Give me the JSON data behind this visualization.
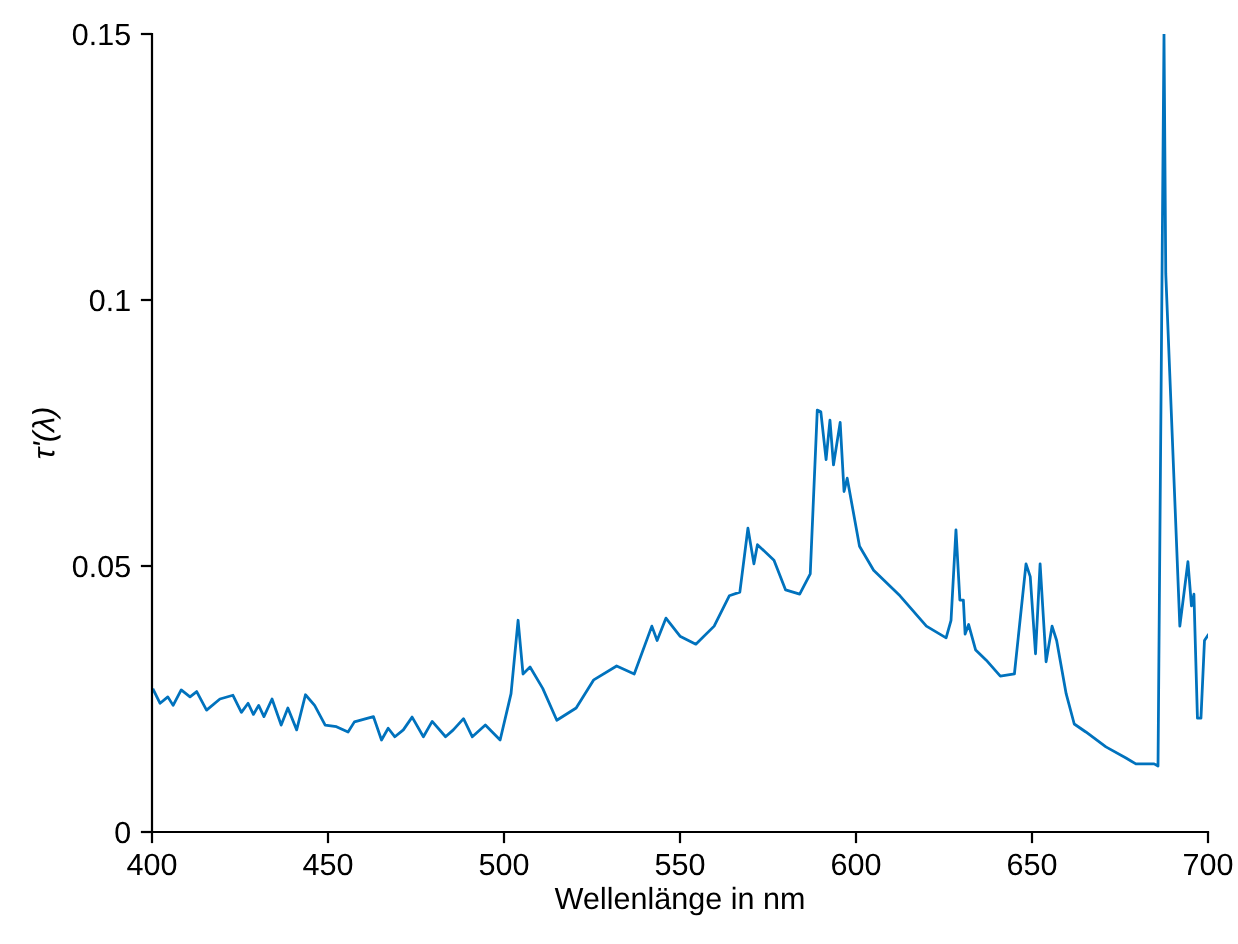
{
  "chart_data": {
    "type": "line",
    "xlabel": "Wellenlänge in nm",
    "ylabel": "τ'(λ)",
    "xlim": [
      400,
      700
    ],
    "xticks": [
      400,
      450,
      500,
      550,
      600,
      650,
      700
    ],
    "ylim": [
      0,
      0.15
    ],
    "yticks": [
      0,
      0.05,
      0.1,
      0.15
    ],
    "grid": false,
    "series": [
      {
        "color": "#0072bd",
        "x": [
          400.4,
          402.3,
          404.5,
          406,
          408.3,
          410.8,
          412.7,
          415.5,
          419.3,
          423,
          425.4,
          427.3,
          428.8,
          430.3,
          431.8,
          434.1,
          436.7,
          438.6,
          441.1,
          443.6,
          446.2,
          449.2,
          452.4,
          455.7,
          457.5,
          462.9,
          465.2,
          467.1,
          469,
          471.4,
          473.9,
          477.1,
          479.6,
          483.4,
          485.6,
          488.5,
          491,
          494.7,
          498.9,
          502,
          504,
          505.4,
          507.4,
          511,
          515,
          520.5,
          525.5,
          532,
          537,
          542,
          543.5,
          546,
          550,
          554.5,
          559.7,
          564,
          567,
          569.3,
          571,
          572,
          576.7,
          580,
          584,
          587,
          589,
          590,
          591.5,
          592.6,
          593.6,
          595.5,
          596.6,
          597.5,
          601,
          605,
          612.5,
          620,
          625.6,
          627,
          628.4,
          629.5,
          630.5,
          631,
          632,
          634,
          637,
          641,
          645,
          648.3,
          649.5,
          651,
          652.3,
          654,
          655.7,
          657,
          659.7,
          662,
          665.3,
          671,
          676.7,
          679.5,
          684.7,
          685.8,
          687.5,
          688,
          692,
          694.3,
          695.3,
          696,
          697,
          698,
          699,
          700
        ],
        "values": [
          0.0267,
          0.0242,
          0.0254,
          0.0238,
          0.0267,
          0.0254,
          0.0264,
          0.0229,
          0.025,
          0.0257,
          0.0225,
          0.0242,
          0.0221,
          0.0238,
          0.0217,
          0.025,
          0.0201,
          0.0233,
          0.0192,
          0.0258,
          0.0238,
          0.0201,
          0.0198,
          0.0188,
          0.0207,
          0.0217,
          0.0173,
          0.0195,
          0.0179,
          0.0192,
          0.0216,
          0.0179,
          0.0208,
          0.0179,
          0.0192,
          0.0213,
          0.0179,
          0.0201,
          0.0173,
          0.026,
          0.0398,
          0.0297,
          0.031,
          0.027,
          0.021,
          0.0233,
          0.0286,
          0.0312,
          0.0297,
          0.0387,
          0.036,
          0.0402,
          0.0368,
          0.0353,
          0.0387,
          0.0444,
          0.0451,
          0.0571,
          0.0504,
          0.054,
          0.0511,
          0.0455,
          0.0447,
          0.0485,
          0.0793,
          0.079,
          0.07,
          0.0774,
          0.069,
          0.077,
          0.064,
          0.0665,
          0.0537,
          0.0492,
          0.0444,
          0.0387,
          0.0365,
          0.0398,
          0.0568,
          0.0436,
          0.0436,
          0.0372,
          0.039,
          0.0342,
          0.0323,
          0.0293,
          0.0297,
          0.0504,
          0.048,
          0.0335,
          0.0504,
          0.032,
          0.0387,
          0.036,
          0.026,
          0.0203,
          0.0188,
          0.016,
          0.0139,
          0.0128,
          0.0128,
          0.0124,
          0.15,
          0.105,
          0.0387,
          0.0508,
          0.0425,
          0.0447,
          0.0214,
          0.0214,
          0.036,
          0.037
        ]
      }
    ]
  }
}
